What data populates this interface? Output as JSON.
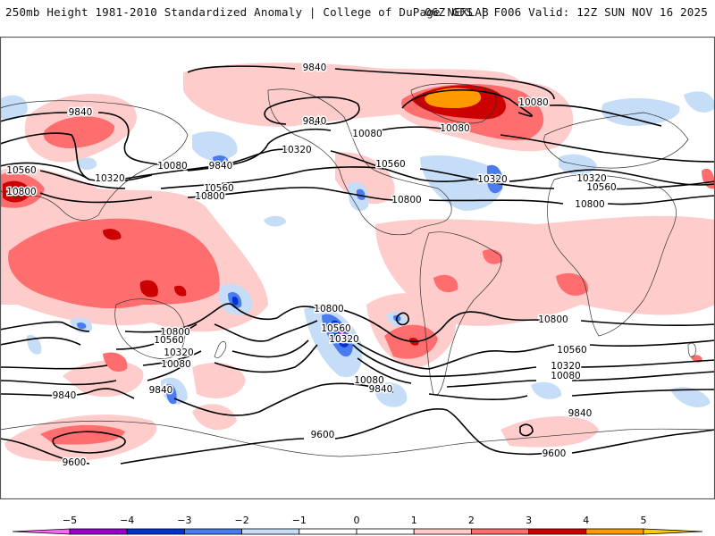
{
  "header": {
    "title_left": "250mb Height 1981-2010 Standardized Anomaly | College of DuPage NEXLAB",
    "title_right": "06Z GFS | F006 Valid: 12Z SUN NOV 16 2025"
  },
  "map": {
    "projection": "global-cylindrical",
    "fill_variable": "250mb height standardized anomaly (sigma)",
    "contour_variable": "250mb geopotential height (m)",
    "contour_interval": 240,
    "contour_levels": [
      9600,
      9840,
      10080,
      10320,
      10560,
      10800
    ],
    "contour_labels": [
      {
        "text": "9840",
        "region": "north-pacific-high-lat"
      },
      {
        "text": "9840",
        "region": "bering-alaska"
      },
      {
        "text": "9840",
        "region": "siberia"
      },
      {
        "text": "9840",
        "region": "nw-pacific"
      },
      {
        "text": "10080",
        "region": "east-asia"
      },
      {
        "text": "10080",
        "region": "gulf-of-alaska"
      },
      {
        "text": "10080",
        "region": "hudson-bay"
      },
      {
        "text": "10080",
        "region": "greenland-east"
      },
      {
        "text": "10320",
        "region": "east-asia"
      },
      {
        "text": "10320",
        "region": "ne-pacific"
      },
      {
        "text": "10320",
        "region": "nw-atlantic"
      },
      {
        "text": "10320",
        "region": "europe"
      },
      {
        "text": "10560",
        "region": "china"
      },
      {
        "text": "10560",
        "region": "west-pacific"
      },
      {
        "text": "10560",
        "region": "central-us"
      },
      {
        "text": "10560",
        "region": "mediterranean"
      },
      {
        "text": "10800",
        "region": "india"
      },
      {
        "text": "10800",
        "region": "west-pacific"
      },
      {
        "text": "10800",
        "region": "gulf-of-mexico"
      },
      {
        "text": "10800",
        "region": "sahara"
      },
      {
        "text": "10800",
        "region": "south-pacific"
      },
      {
        "text": "10800",
        "region": "australia-south"
      },
      {
        "text": "10800",
        "region": "south-atlantic"
      },
      {
        "text": "10560",
        "region": "australia-south"
      },
      {
        "text": "10560",
        "region": "south-pacific"
      },
      {
        "text": "10560",
        "region": "south-atlantic"
      },
      {
        "text": "10320",
        "region": "tasman"
      },
      {
        "text": "10320",
        "region": "south-pacific"
      },
      {
        "text": "10320",
        "region": "south-atlantic"
      },
      {
        "text": "10080",
        "region": "tasman"
      },
      {
        "text": "10080",
        "region": "south-pacific"
      },
      {
        "text": "10080",
        "region": "south-atlantic"
      },
      {
        "text": "9840",
        "region": "southern-ocean-west"
      },
      {
        "text": "9840",
        "region": "southern-ocean-tasman"
      },
      {
        "text": "9840",
        "region": "drake-passage"
      },
      {
        "text": "9840",
        "region": "southern-ocean-atlantic"
      },
      {
        "text": "9600",
        "region": "antarctica-indian"
      },
      {
        "text": "9600",
        "region": "antarctica-pacific"
      },
      {
        "text": "9600",
        "region": "antarctica-atlantic"
      }
    ],
    "anomaly_features": [
      {
        "name": "Greenland / Baffin ridge",
        "max_sigma": 5,
        "sign": "positive"
      },
      {
        "name": "Maritime Continent / West Pacific warm region",
        "max_sigma": 4,
        "sign": "positive"
      },
      {
        "name": "South Pacific cutoff low",
        "min_sigma": -5,
        "sign": "negative"
      },
      {
        "name": "Southeast Pacific ridge",
        "max_sigma": 4,
        "sign": "positive"
      },
      {
        "name": "Southern Ocean ridge south of Australia",
        "max_sigma": 3,
        "sign": "positive"
      },
      {
        "name": "Tasman Sea trough",
        "min_sigma": -3,
        "sign": "negative"
      },
      {
        "name": "Baja California low",
        "min_sigma": -3,
        "sign": "negative"
      },
      {
        "name": "NW Atlantic trough",
        "min_sigma": -3,
        "sign": "negative"
      },
      {
        "name": "Central China high",
        "max_sigma": 4,
        "sign": "positive"
      }
    ]
  },
  "colorbar": {
    "tick_labels": [
      "-5",
      "-4",
      "-3",
      "-2",
      "-1",
      "0",
      "1",
      "2",
      "3",
      "4",
      "5"
    ],
    "colors": {
      "below_-5": "#ff66ff",
      "-5_to_-4": "#9900cc",
      "-4_to_-3": "#0033cc",
      "-3_to_-2": "#4a7bef",
      "-2_to_-1": "#c6ddf8",
      "-1_to_0": "#ffffff",
      "0_to_1": "#ffffff",
      "1_to_2": "#ffcccc",
      "2_to_3": "#ff6e6e",
      "3_to_4": "#cc0000",
      "4_to_5": "#ff9900",
      "above_5": "#ffcc00"
    },
    "segment_order": [
      "-5_to_-4",
      "-4_to_-3",
      "-3_to_-2",
      "-2_to_-1",
      "-1_to_0",
      "0_to_1",
      "1_to_2",
      "2_to_3",
      "3_to_4",
      "4_to_5"
    ]
  }
}
